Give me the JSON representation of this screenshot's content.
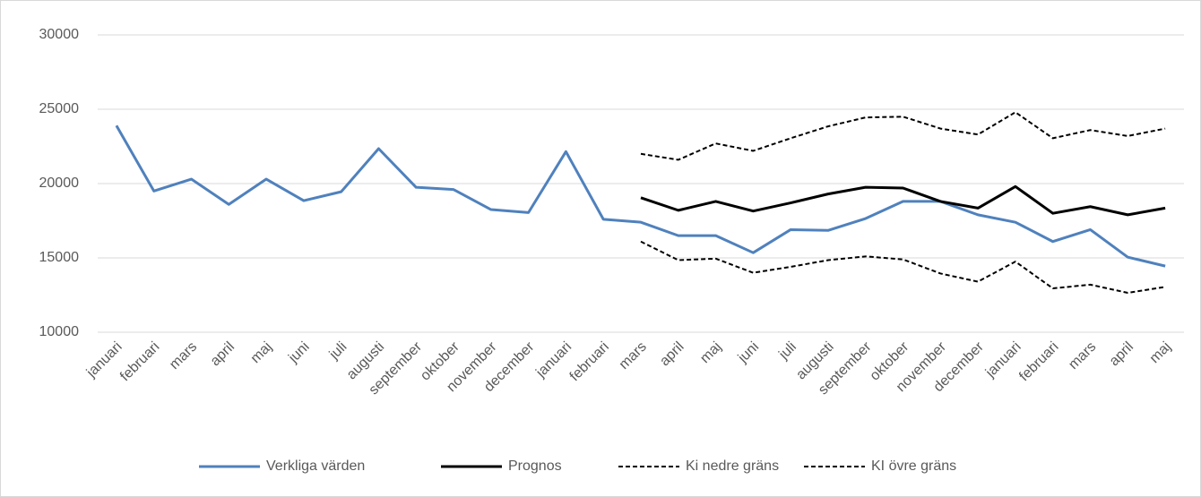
{
  "chart_data": {
    "type": "line",
    "categories": [
      "januari",
      "februari",
      "mars",
      "april",
      "maj",
      "juni",
      "juli",
      "augusti",
      "september",
      "oktober",
      "november",
      "december",
      "januari",
      "februari",
      "mars",
      "april",
      "maj",
      "juni",
      "juli",
      "augusti",
      "september",
      "oktober",
      "november",
      "december",
      "januari",
      "februari",
      "mars",
      "april",
      "maj"
    ],
    "series": [
      {
        "name": "Verkliga värden",
        "color": "#4f81bd",
        "dashed": false,
        "values": [
          23900,
          19500,
          20300,
          18600,
          20300,
          18850,
          19450,
          22350,
          19750,
          19600,
          18250,
          18050,
          22150,
          17600,
          17400,
          16500,
          16500,
          15350,
          16900,
          16850,
          17650,
          18800,
          18800,
          17900,
          17400,
          16100,
          16900,
          15050,
          14450
        ]
      },
      {
        "name": "Prognos",
        "color": "#000000",
        "dashed": false,
        "values": [
          null,
          null,
          null,
          null,
          null,
          null,
          null,
          null,
          null,
          null,
          null,
          null,
          null,
          null,
          19050,
          18200,
          18800,
          18150,
          18700,
          19300,
          19750,
          19700,
          18800,
          18350,
          19800,
          18000,
          18450,
          17900,
          18350
        ]
      },
      {
        "name": "Ki nedre gräns",
        "color": "#000000",
        "dashed": true,
        "values": [
          null,
          null,
          null,
          null,
          null,
          null,
          null,
          null,
          null,
          null,
          null,
          null,
          null,
          null,
          16100,
          14850,
          14950,
          14000,
          14400,
          14850,
          15100,
          14900,
          13950,
          13400,
          14750,
          12950,
          13200,
          12650,
          13050
        ]
      },
      {
        "name": "KI övre gräns",
        "color": "#000000",
        "dashed": true,
        "values": [
          null,
          null,
          null,
          null,
          null,
          null,
          null,
          null,
          null,
          null,
          null,
          null,
          null,
          null,
          22000,
          21600,
          22700,
          22200,
          23050,
          23850,
          24450,
          24500,
          23700,
          23300,
          24800,
          23050,
          23600,
          23200,
          23700
        ]
      }
    ],
    "ylim": [
      10000,
      30000
    ],
    "yticks": [
      10000,
      15000,
      20000,
      25000,
      30000
    ],
    "grid": true,
    "legend": "bottom"
  }
}
